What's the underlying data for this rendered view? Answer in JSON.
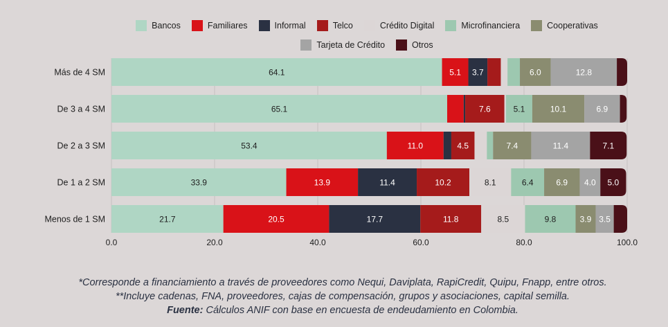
{
  "chart_data": {
    "type": "bar",
    "orientation": "horizontal",
    "stacked": true,
    "title": "",
    "xlabel": "",
    "ylabel": "",
    "xlim": [
      0,
      100
    ],
    "x_ticks": [
      "0.0",
      "20.0",
      "40.0",
      "60.0",
      "80.0",
      "100.0"
    ],
    "grid": true,
    "legend_position": "top",
    "categories": [
      "Más de 4 SM",
      "De 3 a 4 SM",
      "De 2 a 3 SM",
      "De 1 a 2 SM",
      "Menos de 1 SM"
    ],
    "series": [
      {
        "name": "Bancos",
        "color": "#afd6c4",
        "label_color": "#1e1e1e",
        "values": [
          64.1,
          65.1,
          53.4,
          33.9,
          21.7
        ],
        "labels": [
          "64.1",
          "65.1",
          "53.4",
          "33.9",
          "21.7"
        ]
      },
      {
        "name": "Familiares",
        "color": "#d91218",
        "label_color": "#ffffff",
        "values": [
          5.1,
          3.2,
          11.0,
          13.9,
          20.5
        ],
        "labels": [
          "5.1",
          "",
          "11.0",
          "13.9",
          "20.5"
        ]
      },
      {
        "name": "Informal",
        "color": "#2a3142",
        "label_color": "#ffffff",
        "values": [
          3.7,
          0.3,
          1.5,
          11.4,
          17.7
        ],
        "labels": [
          "3.7",
          "",
          "",
          "11.4",
          "17.7"
        ]
      },
      {
        "name": "Telco",
        "color": "#a51b1b",
        "label_color": "#ffffff",
        "values": [
          2.6,
          7.6,
          4.5,
          10.2,
          11.8
        ],
        "labels": [
          "",
          "7.6",
          "4.5",
          "10.2",
          "11.8"
        ]
      },
      {
        "name": "Crédito Digital",
        "color": "#dcd6d6",
        "label_color": "#1e1e1e",
        "values": [
          1.3,
          0.3,
          2.4,
          8.1,
          8.5
        ],
        "labels": [
          "",
          "",
          "",
          "8.1",
          "8.5"
        ]
      },
      {
        "name": "Microfinanciera",
        "color": "#9dc8b0",
        "label_color": "#1e1e1e",
        "values": [
          2.4,
          5.1,
          1.2,
          6.4,
          9.8
        ],
        "labels": [
          "",
          "5.1",
          "",
          "6.4",
          "9.8"
        ]
      },
      {
        "name": "Cooperativas",
        "color": "#8a8c70",
        "label_color": "#ffffff",
        "values": [
          6.0,
          10.1,
          7.4,
          6.9,
          3.9
        ],
        "labels": [
          "6.0",
          "10.1",
          "7.4",
          "6.9",
          "3.9"
        ]
      },
      {
        "name": "Tarjeta de Crédito",
        "color": "#a4a4a4",
        "label_color": "#ffffff",
        "values": [
          12.8,
          6.9,
          11.4,
          4.0,
          3.5
        ],
        "labels": [
          "12.8",
          "6.9",
          "11.4",
          "4.0",
          "3.5"
        ]
      },
      {
        "name": "Otros",
        "color": "#4a1018",
        "label_color": "#ffffff",
        "values": [
          2.0,
          1.3,
          7.1,
          5.0,
          2.6
        ],
        "labels": [
          "",
          "",
          "7.1",
          "5.0",
          ""
        ]
      }
    ]
  },
  "legend": {
    "row1": [
      "Bancos",
      "Familiares",
      "Informal",
      "Telco",
      "Crédito Digital",
      "Microfinanciera",
      "Cooperativas"
    ],
    "row2": [
      "Tarjeta de Crédito",
      "Otros"
    ]
  },
  "notes": {
    "line1": "*Corresponde a financiamiento a través de proveedores como Nequi, Daviplata, RapiCredit, Quipu, Fnapp, entre otros.",
    "line2": "**Incluye cadenas, FNA, proveedores, cajas de compensación, grupos y asociaciones, capital semilla.",
    "source_label": "Fuente:",
    "source_text": " Cálculos ANIF con base en encuesta de endeudamiento en Colombia."
  }
}
